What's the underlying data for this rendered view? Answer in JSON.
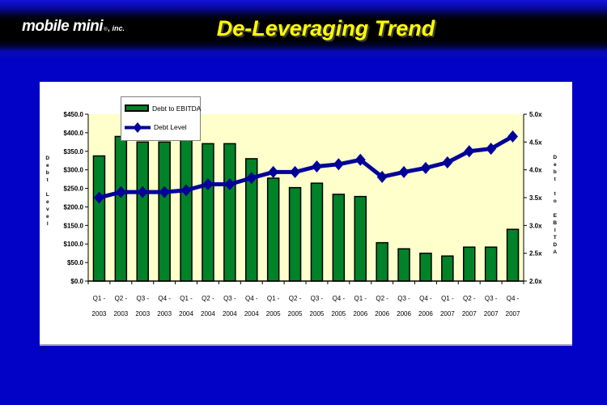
{
  "slide": {
    "logo": {
      "brand": "mobile mini",
      "reg": "®",
      "suffix": ", inc."
    },
    "title": "De-Leveraging Trend",
    "colors": {
      "background": "#0202C6",
      "header_band": "#000000",
      "title_text": "#FFFF00",
      "panel": "#FFFFFF",
      "plot_background": "#FFFFCC",
      "bar_fill": "#008228",
      "bar_border": "#000000",
      "line": "#000099",
      "axis": "#000000"
    }
  },
  "chart_data": {
    "type": "bar",
    "subtype": "combo bar+line, dual axis",
    "title": "De-Leveraging Trend",
    "categories": [
      "Q1-2003",
      "Q2-2003",
      "Q3-2003",
      "Q4-2003",
      "Q1-2004",
      "Q2-2004",
      "Q3-2004",
      "Q4-2004",
      "Q1-2005",
      "Q2-2005",
      "Q3-2005",
      "Q4-2005",
      "Q1-2006",
      "Q2-2006",
      "Q3-2006",
      "Q4-2006",
      "Q1-2007",
      "Q2-2007",
      "Q3-2007",
      "Q4-2007"
    ],
    "x_labels_top": [
      "Q1 -",
      "Q2 -",
      "Q3 -",
      "Q4 -",
      "Q1 -",
      "Q2 -",
      "Q3 -",
      "Q4 -",
      "Q1 -",
      "Q2 -",
      "Q3 -",
      "Q4 -",
      "Q1 -",
      "Q2 -",
      "Q3 -",
      "Q4 -",
      "Q1 -",
      "Q2 -",
      "Q3 -",
      "Q4 -"
    ],
    "x_labels_bottom": [
      "2003",
      "2003",
      "2003",
      "2003",
      "2004",
      "2004",
      "2004",
      "2004",
      "2005",
      "2005",
      "2005",
      "2005",
      "2006",
      "2006",
      "2006",
      "2006",
      "2007",
      "2007",
      "2007",
      "2007"
    ],
    "series": [
      {
        "name": "Debt to EBITDA",
        "type": "bar",
        "axis": "right",
        "unit": "x",
        "values": [
          4.25,
          4.6,
          4.5,
          4.5,
          4.55,
          4.47,
          4.47,
          4.2,
          3.85,
          3.68,
          3.76,
          3.56,
          3.52,
          2.69,
          2.58,
          2.5,
          2.45,
          2.61,
          2.61,
          2.93
        ]
      },
      {
        "name": "Debt Level",
        "type": "line",
        "axis": "left",
        "unit": "$M",
        "values": [
          225,
          240,
          240,
          240,
          245,
          261,
          261,
          278,
          294,
          294,
          309,
          315,
          327,
          281,
          294,
          305,
          320,
          350,
          357,
          390
        ]
      }
    ],
    "left_axis": {
      "title": "Debt Level",
      "min": 0,
      "max": 450,
      "step": 50,
      "ticks": [
        "$450.0",
        "$400.0",
        "$350.0",
        "$300.0",
        "$250.0",
        "$200.0",
        "$150.0",
        "$100.0",
        "$50.0",
        "$0.0"
      ]
    },
    "right_axis": {
      "title": "Debt to EBITDA",
      "min": 2.0,
      "max": 5.0,
      "step": 0.5,
      "ticks": [
        "5.0x",
        "4.5x",
        "4.0x",
        "3.5x",
        "3.0x",
        "2.5x",
        "2.0x"
      ]
    },
    "legend_position": "top-left",
    "grid": false
  }
}
